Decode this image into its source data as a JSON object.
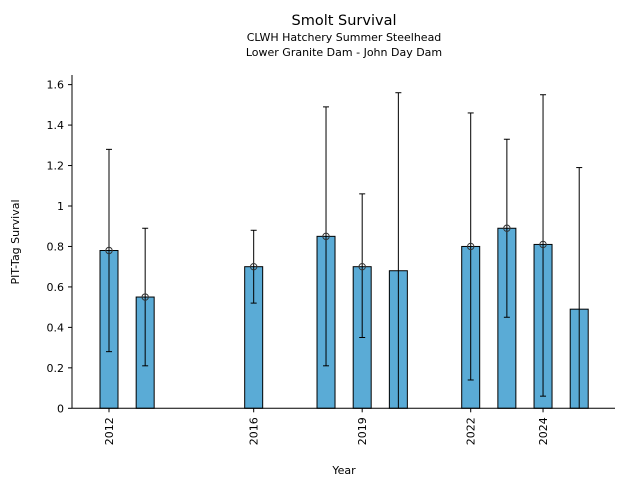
{
  "chart_data": {
    "type": "bar",
    "title": "Smolt Survival",
    "subtitle_lines": [
      "CLWH Hatchery Summer Steelhead",
      "Lower Granite Dam - John Day Dam"
    ],
    "xlabel": "Year",
    "ylabel": "PIT-Tag Survival",
    "ylim": [
      0,
      1.65
    ],
    "xlim": [
      2011.2,
      2026.0
    ],
    "yticks": [
      0,
      0.2,
      0.4,
      0.6,
      0.8,
      1,
      1.2,
      1.4,
      1.6
    ],
    "ytick_labels": [
      "0",
      "0.2",
      "0.4",
      "0.6",
      "0.8",
      "1",
      "1.2",
      "1.4",
      "1.6"
    ],
    "xticks": [
      2012,
      2016,
      2019,
      2022,
      2024
    ],
    "xtick_labels": [
      "2012",
      "2016",
      "2019",
      "2022",
      "2024"
    ],
    "bar_color": "#5aabd6",
    "grid": false,
    "points": [
      {
        "year": 2012,
        "value": 0.78,
        "lower": 0.28,
        "upper": 1.28,
        "marker": true
      },
      {
        "year": 2013,
        "value": 0.55,
        "lower": 0.21,
        "upper": 0.89,
        "marker": true
      },
      {
        "year": 2016,
        "value": 0.7,
        "lower": 0.52,
        "upper": 0.88,
        "marker": true
      },
      {
        "year": 2018,
        "value": 0.85,
        "lower": 0.21,
        "upper": 1.49,
        "marker": true
      },
      {
        "year": 2019,
        "value": 0.7,
        "lower": 0.35,
        "upper": 1.06,
        "marker": true
      },
      {
        "year": 2020,
        "value": 0.68,
        "lower": 0.0,
        "upper": 1.56,
        "marker": false
      },
      {
        "year": 2022,
        "value": 0.8,
        "lower": 0.14,
        "upper": 1.46,
        "marker": true
      },
      {
        "year": 2023,
        "value": 0.89,
        "lower": 0.45,
        "upper": 1.33,
        "marker": true
      },
      {
        "year": 2024,
        "value": 0.81,
        "lower": 0.06,
        "upper": 1.55,
        "marker": true
      },
      {
        "year": 2025,
        "value": 0.49,
        "lower": 0.0,
        "upper": 1.19,
        "marker": false
      }
    ]
  }
}
